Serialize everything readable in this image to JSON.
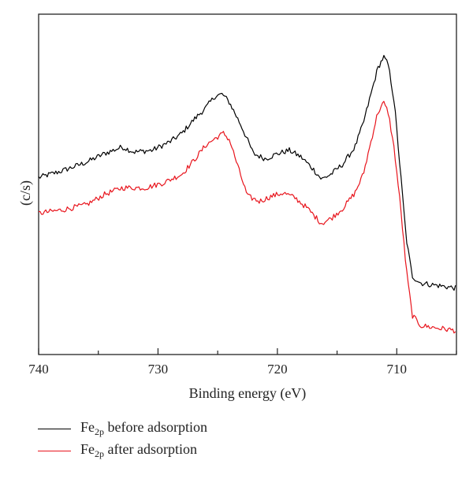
{
  "chart_data": {
    "type": "line",
    "title": "",
    "xlabel": "Binding energy (eV)",
    "ylabel": "(c/s)",
    "x_reversed": true,
    "xlim": [
      740,
      705
    ],
    "ylim": [
      0,
      100
    ],
    "x_ticks": [
      740,
      730,
      720,
      710
    ],
    "y_tick_labels_shown": false,
    "grid": false,
    "legend_position": "bottom-left",
    "series": [
      {
        "name": "Fe2p before adsorption",
        "label_main": "Fe",
        "label_sub": "2p",
        "label_tail": " before adsorption",
        "color": "#000000",
        "points": [
          [
            740,
            52
          ],
          [
            738,
            54
          ],
          [
            736,
            56.5
          ],
          [
            734.5,
            59
          ],
          [
            733,
            61
          ],
          [
            732,
            59.5
          ],
          [
            730.5,
            60
          ],
          [
            729,
            62.5
          ],
          [
            728,
            65
          ],
          [
            727,
            69
          ],
          [
            726,
            72.5
          ],
          [
            725.2,
            76
          ],
          [
            724.6,
            76.5
          ],
          [
            724,
            74
          ],
          [
            723,
            67
          ],
          [
            722,
            59
          ],
          [
            721,
            57.5
          ],
          [
            720,
            59
          ],
          [
            719,
            60
          ],
          [
            718,
            58
          ],
          [
            717,
            54.5
          ],
          [
            716.3,
            51.5
          ],
          [
            715.5,
            53
          ],
          [
            714.5,
            56
          ],
          [
            713.5,
            61
          ],
          [
            712.8,
            68
          ],
          [
            712.2,
            76
          ],
          [
            711.6,
            84
          ],
          [
            711.1,
            87.5
          ],
          [
            710.7,
            85
          ],
          [
            710.2,
            74
          ],
          [
            709.7,
            54
          ],
          [
            709.2,
            34
          ],
          [
            708.7,
            23
          ],
          [
            708,
            21
          ],
          [
            707,
            20.5
          ],
          [
            706,
            20
          ],
          [
            705,
            19.5
          ]
        ]
      },
      {
        "name": "Fe2p after adsorption",
        "label_main": "Fe",
        "label_sub": "2p",
        "label_tail": " after adsorption",
        "color": "#e8141c",
        "points": [
          [
            740,
            41.5
          ],
          [
            738,
            42.5
          ],
          [
            736,
            44
          ],
          [
            734.5,
            47
          ],
          [
            733,
            49
          ],
          [
            731,
            49
          ],
          [
            729.5,
            50.5
          ],
          [
            728,
            53
          ],
          [
            727,
            57
          ],
          [
            726,
            61.5
          ],
          [
            725,
            64
          ],
          [
            724.5,
            65
          ],
          [
            724,
            63
          ],
          [
            723.2,
            54
          ],
          [
            722.5,
            46.5
          ],
          [
            721.5,
            45
          ],
          [
            720.5,
            46.5
          ],
          [
            719.5,
            47.5
          ],
          [
            718.5,
            46
          ],
          [
            717.5,
            43
          ],
          [
            716.3,
            38.5
          ],
          [
            715.5,
            40
          ],
          [
            714.5,
            43
          ],
          [
            713.5,
            47.5
          ],
          [
            712.8,
            53
          ],
          [
            712.2,
            62
          ],
          [
            711.6,
            71
          ],
          [
            711.1,
            74
          ],
          [
            710.7,
            71
          ],
          [
            710.2,
            60
          ],
          [
            709.7,
            44
          ],
          [
            709.2,
            25
          ],
          [
            708.7,
            11.5
          ],
          [
            708,
            8.5
          ],
          [
            707,
            8
          ],
          [
            706,
            7.5
          ],
          [
            705,
            7
          ]
        ]
      }
    ]
  }
}
